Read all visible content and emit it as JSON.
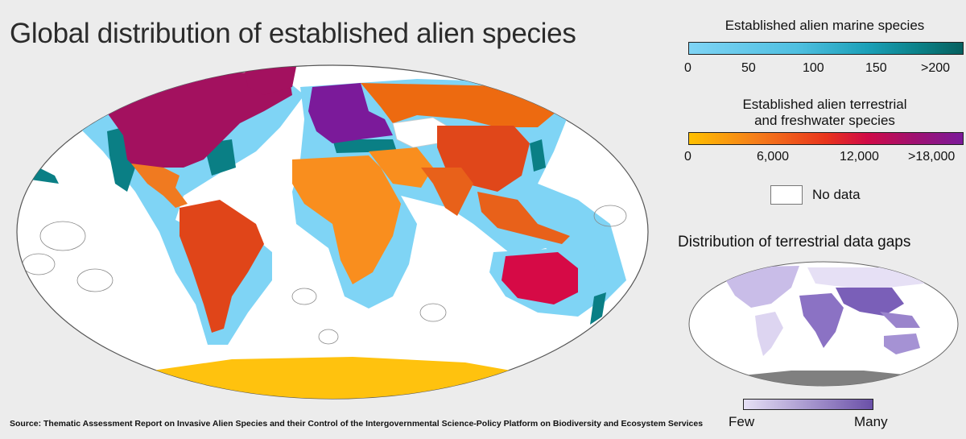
{
  "title": "Global distribution of established alien species",
  "source": "Source: Thematic Assessment Report on Invasive Alien Species and their Control of the Intergovernmental Science-Policy Platform on Biodiversity and Ecosystem Services",
  "marine_legend": {
    "title": "Established alien marine species",
    "ticks": [
      "0",
      "50",
      "100",
      "150",
      ">200"
    ],
    "colors": [
      "#7fd4f5",
      "#4ebfe0",
      "#1ba0b8",
      "#0a7f85",
      "#06605f"
    ]
  },
  "terrestrial_legend": {
    "title_line1": "Established alien terrestrial",
    "title_line2": "and freshwater species",
    "ticks": [
      "0",
      "6,000",
      "12,000",
      ">18,000"
    ],
    "colors": [
      "#ffc000",
      "#f57c1a",
      "#e8341c",
      "#d00a46",
      "#a01070",
      "#7b1a9a"
    ]
  },
  "no_data_label": "No data",
  "gaps_legend": {
    "title": "Distribution of terrestrial data gaps",
    "low_label": "Few",
    "high_label": "Many",
    "colors": [
      "#e6e0f5",
      "#6a50a8"
    ]
  },
  "map_colors": {
    "ocean": "#ffffff",
    "marine_shelf": "#7fd4f5",
    "marine_dense": "#0a7f85",
    "north_america": "#a3115f",
    "central_america": "#f07a20",
    "south_america": "#e04519",
    "europe": "#7b1a9a",
    "russia": "#ed6a10",
    "central_asia": "#ffffff",
    "china": "#e0471a",
    "middle_east_africa": "#f98e1e",
    "south_asia": "#e8611a",
    "southeast_asia": "#e8611a",
    "australia": "#d60a46",
    "new_zealand": "#0a7f85",
    "antarctica": "#ffc20e",
    "greenland": "#a3115f"
  }
}
